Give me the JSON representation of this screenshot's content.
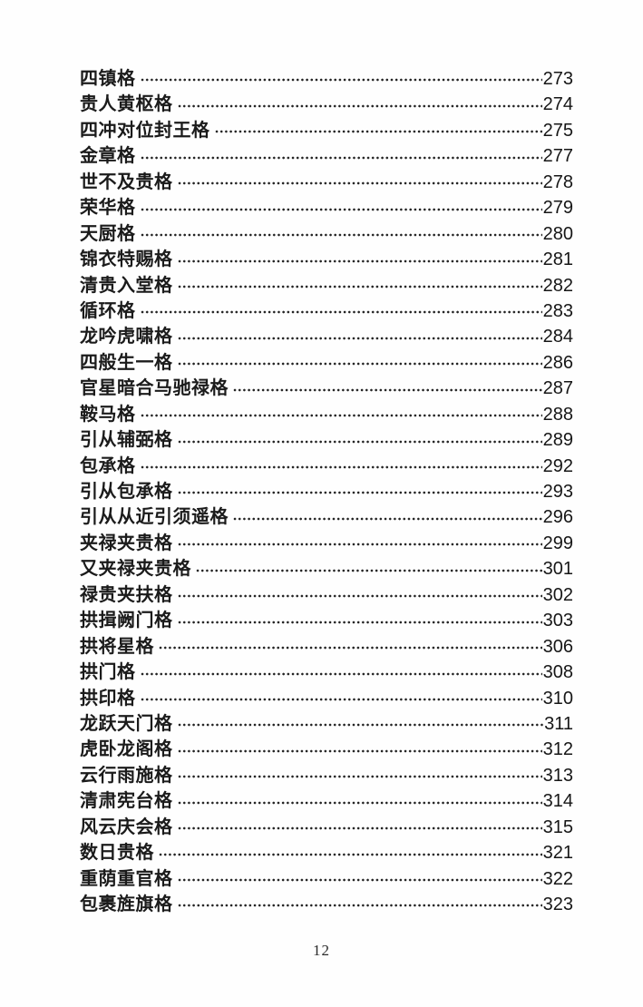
{
  "page": {
    "number": "12"
  },
  "toc": {
    "entries": [
      {
        "title": "四镇格",
        "page": "273"
      },
      {
        "title": "贵人黄枢格",
        "page": "274"
      },
      {
        "title": "四冲对位封王格",
        "page": "275"
      },
      {
        "title": "金章格",
        "page": "277"
      },
      {
        "title": "世不及贵格",
        "page": "278"
      },
      {
        "title": "荣华格",
        "page": "279"
      },
      {
        "title": "天厨格",
        "page": "280"
      },
      {
        "title": "锦衣特赐格",
        "page": "281"
      },
      {
        "title": "清贵入堂格",
        "page": "282"
      },
      {
        "title": "循环格",
        "page": "283"
      },
      {
        "title": "龙吟虎啸格",
        "page": "284"
      },
      {
        "title": "四般生一格",
        "page": "286"
      },
      {
        "title": "官星暗合马驰禄格",
        "page": "287"
      },
      {
        "title": "鞍马格",
        "page": "288"
      },
      {
        "title": "引从辅弼格",
        "page": "289"
      },
      {
        "title": "包承格",
        "page": "292"
      },
      {
        "title": "引从包承格",
        "page": "293"
      },
      {
        "title": "引从从近引须遥格",
        "page": "296"
      },
      {
        "title": "夹禄夹贵格",
        "page": "299"
      },
      {
        "title": "又夹禄夹贵格",
        "page": "301"
      },
      {
        "title": "禄贵夹扶格",
        "page": "302"
      },
      {
        "title": "拱揖阙门格",
        "page": "303"
      },
      {
        "title": "拱将星格",
        "page": "306"
      },
      {
        "title": "拱门格",
        "page": "308"
      },
      {
        "title": "拱印格",
        "page": "310"
      },
      {
        "title": "龙跃天门格",
        "page": "311"
      },
      {
        "title": "虎卧龙阁格",
        "page": "312"
      },
      {
        "title": "云行雨施格",
        "page": "313"
      },
      {
        "title": "清肃宪台格",
        "page": "314"
      },
      {
        "title": "风云庆会格",
        "page": "315"
      },
      {
        "title": "数日贵格",
        "page": "321"
      },
      {
        "title": "重荫重官格",
        "page": "322"
      },
      {
        "title": "包裹旌旗格",
        "page": "323"
      }
    ]
  }
}
